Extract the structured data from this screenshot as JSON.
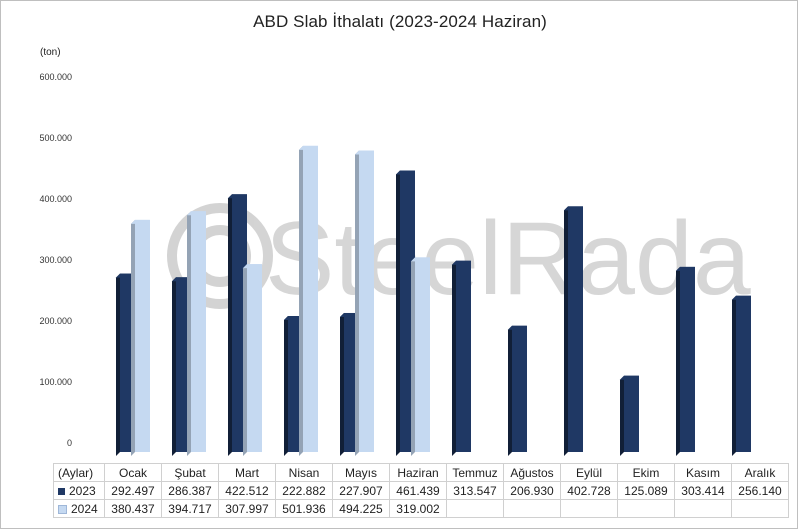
{
  "chart_data": {
    "type": "bar",
    "title": "ABD Slab İthalatı (2023-2024 Haziran)",
    "unit_label": "(ton)",
    "ylim": [
      0,
      600000
    ],
    "ytick_labels": [
      "0",
      "100.000",
      "200.000",
      "300.000",
      "400.000",
      "500.000",
      "600.000"
    ],
    "ytick_values": [
      0,
      100000,
      200000,
      300000,
      400000,
      500000,
      600000
    ],
    "grid": false,
    "categories_header": "(Aylar)",
    "categories": [
      "Ocak",
      "Şubat",
      "Mart",
      "Nisan",
      "Mayıs",
      "Haziran",
      "Temmuz",
      "Ağustos",
      "Eylül",
      "Ekim",
      "Kasım",
      "Aralık"
    ],
    "series": [
      {
        "name": "2023",
        "color": "#1f3864",
        "values": [
          292497,
          286387,
          422512,
          222882,
          227907,
          461439,
          313547,
          206930,
          402728,
          125089,
          303414,
          256140
        ],
        "labels": [
          "292.497",
          "286.387",
          "422.512",
          "222.882",
          "227.907",
          "461.439",
          "313.547",
          "206.930",
          "402.728",
          "125.089",
          "303.414",
          "256.140"
        ]
      },
      {
        "name": "2024",
        "color": "#c5d9f1",
        "values": [
          380437,
          394717,
          307997,
          501936,
          494225,
          319002,
          null,
          null,
          null,
          null,
          null,
          null
        ],
        "labels": [
          "380.437",
          "394.717",
          "307.997",
          "501.936",
          "494.225",
          "319.002",
          "",
          "",
          "",
          "",
          "",
          ""
        ]
      }
    ]
  },
  "watermark": {
    "text": "SteelRadar"
  }
}
